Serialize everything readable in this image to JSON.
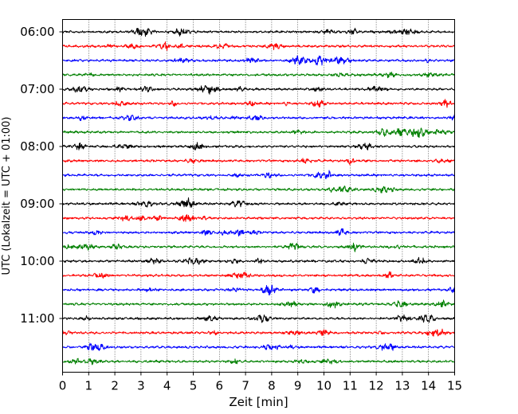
{
  "chart_data": {
    "type": "line",
    "title": "",
    "xlabel": "Zeit  [min]",
    "ylabel": "UTC (Lokalzeit = UTC + 01:00)",
    "xlim": [
      0,
      15
    ],
    "x_ticks": [
      "0",
      "1",
      "2",
      "3",
      "4",
      "5",
      "6",
      "7",
      "8",
      "9",
      "10",
      "11",
      "12",
      "13",
      "14",
      "15"
    ],
    "y_tick_labels": [
      "06:00",
      "07:00",
      "08:00",
      "09:00",
      "10:00",
      "11:00"
    ],
    "grid": "vertical dotted lines at each minute",
    "trace_interval_min": 15,
    "first_trace": "06:00",
    "trace_count": 24,
    "trace_colors": [
      "#000000",
      "#ff0000",
      "#0000ff",
      "#008000"
    ],
    "signal": "continuous seismogram noise, no labelled amplitude"
  }
}
